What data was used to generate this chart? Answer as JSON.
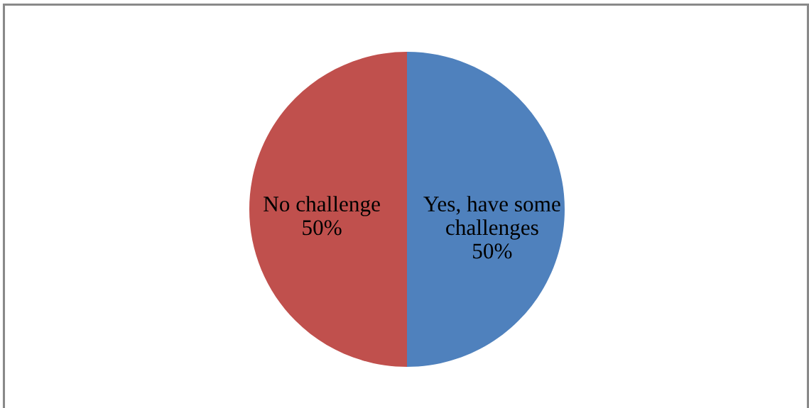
{
  "chart_data": {
    "type": "pie",
    "categories": [
      "Yes, have some challenges",
      "No challenge"
    ],
    "values": [
      50,
      50
    ],
    "colors": [
      "#4f81bd",
      "#c0504d"
    ],
    "value_labels": [
      "50%",
      "50%"
    ]
  }
}
